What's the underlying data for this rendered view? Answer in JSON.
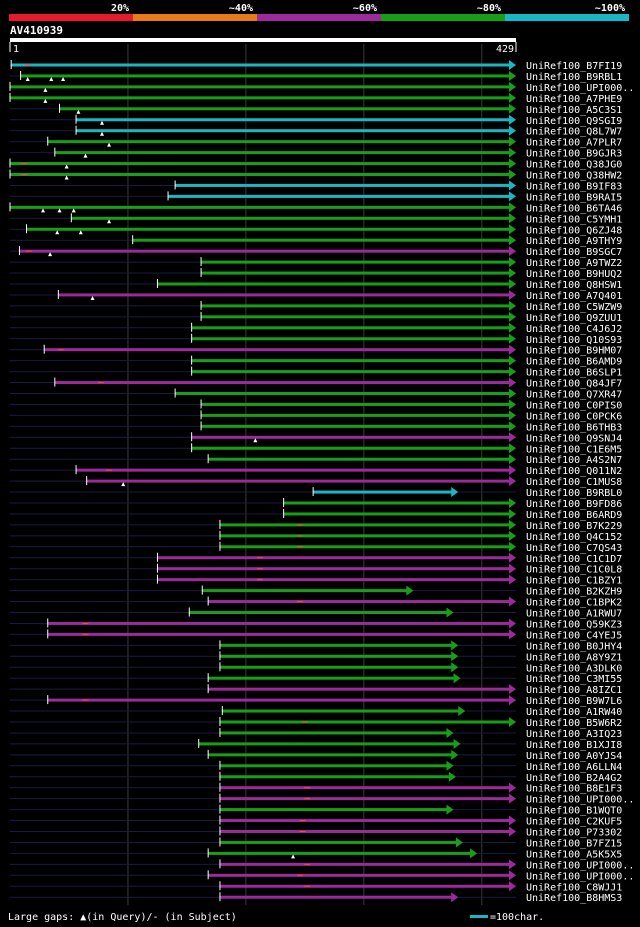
{
  "query": {
    "id": "AV410939",
    "start": "1",
    "end": "429",
    "length": 429
  },
  "identity_scale": [
    {
      "label": "20%",
      "color": "#e8192c"
    },
    {
      "label": "~40%",
      "color": "#e87b17"
    },
    {
      "label": "~60%",
      "color": "#9c2a9c"
    },
    {
      "label": "~80%",
      "color": "#17a017"
    },
    {
      "label": "~100%",
      "color": "#17b8c4"
    }
  ],
  "footer": {
    "gaps_text": "Large gaps: ▲(in Query)/- (in Subject)",
    "scale_text": "=100char."
  },
  "hits": [
    {
      "name": "UniRef100_B7FI19",
      "start": 1,
      "end": 429,
      "color": "#17b8c4",
      "qgaps": [],
      "sgaps": [
        15
      ]
    },
    {
      "name": "UniRef100_B9RBL1",
      "start": 9,
      "end": 429,
      "color": "#17a017",
      "qgaps": [
        15,
        35,
        45
      ],
      "sgaps": []
    },
    {
      "name": "UniRef100_UPI000..",
      "start": 0,
      "end": 429,
      "color": "#17a017",
      "qgaps": [
        30
      ],
      "sgaps": []
    },
    {
      "name": "UniRef100_A7PHE9",
      "start": 0,
      "end": 429,
      "color": "#17a017",
      "qgaps": [
        30
      ],
      "sgaps": []
    },
    {
      "name": "UniRef100_A5C3S1",
      "start": 42,
      "end": 429,
      "color": "#17a017",
      "qgaps": [
        58
      ],
      "sgaps": []
    },
    {
      "name": "UniRef100_Q9SGI9",
      "start": 56,
      "end": 429,
      "color": "#17b8c4",
      "qgaps": [
        78
      ],
      "sgaps": []
    },
    {
      "name": "UniRef100_Q8L7W7",
      "start": 56,
      "end": 429,
      "color": "#17b8c4",
      "qgaps": [
        78
      ],
      "sgaps": []
    },
    {
      "name": "UniRef100_A7PLR7",
      "start": 32,
      "end": 429,
      "color": "#17a017",
      "qgaps": [
        84
      ],
      "sgaps": []
    },
    {
      "name": "UniRef100_B9GJR3",
      "start": 38,
      "end": 429,
      "color": "#17a017",
      "qgaps": [
        64
      ],
      "sgaps": []
    },
    {
      "name": "UniRef100_Q38JG0",
      "start": 0,
      "end": 429,
      "color": "#17a017",
      "qgaps": [
        48
      ],
      "sgaps": [
        12
      ]
    },
    {
      "name": "UniRef100_Q38HW2",
      "start": 0,
      "end": 429,
      "color": "#17a017",
      "qgaps": [
        48
      ],
      "sgaps": [
        12
      ]
    },
    {
      "name": "UniRef100_B9IF83",
      "start": 140,
      "end": 429,
      "color": "#17b8c4",
      "qgaps": [],
      "sgaps": []
    },
    {
      "name": "UniRef100_B9RAI5",
      "start": 134,
      "end": 429,
      "color": "#17b8c4",
      "qgaps": [],
      "sgaps": []
    },
    {
      "name": "UniRef100_B6TA46",
      "start": 0,
      "end": 429,
      "color": "#17a017",
      "qgaps": [
        28,
        42,
        54
      ],
      "sgaps": []
    },
    {
      "name": "UniRef100_C5YMH1",
      "start": 52,
      "end": 429,
      "color": "#17a017",
      "qgaps": [
        84
      ],
      "sgaps": []
    },
    {
      "name": "UniRef100_Q6ZJ48",
      "start": 14,
      "end": 429,
      "color": "#17a017",
      "qgaps": [
        40,
        60
      ],
      "sgaps": []
    },
    {
      "name": "UniRef100_A9THY9",
      "start": 104,
      "end": 429,
      "color": "#17a017",
      "qgaps": [],
      "sgaps": []
    },
    {
      "name": "UniRef100_B9SGC7",
      "start": 8,
      "end": 429,
      "color": "#9c2a9c",
      "qgaps": [
        34
      ],
      "sgaps": [
        16
      ]
    },
    {
      "name": "UniRef100_A9TWZ2",
      "start": 162,
      "end": 429,
      "color": "#17a017",
      "qgaps": [],
      "sgaps": []
    },
    {
      "name": "UniRef100_B9HUQ2",
      "start": 162,
      "end": 429,
      "color": "#17a017",
      "qgaps": [],
      "sgaps": []
    },
    {
      "name": "UniRef100_Q8HSW1",
      "start": 125,
      "end": 429,
      "color": "#17a017",
      "qgaps": [],
      "sgaps": []
    },
    {
      "name": "UniRef100_A7Q401",
      "start": 41,
      "end": 429,
      "color": "#9c2a9c",
      "qgaps": [
        70
      ],
      "sgaps": []
    },
    {
      "name": "UniRef100_C5WZW9",
      "start": 162,
      "end": 429,
      "color": "#17a017",
      "qgaps": [],
      "sgaps": []
    },
    {
      "name": "UniRef100_Q9ZUU1",
      "start": 162,
      "end": 429,
      "color": "#17a017",
      "qgaps": [],
      "sgaps": []
    },
    {
      "name": "UniRef100_C4J6J2",
      "start": 154,
      "end": 429,
      "color": "#17a017",
      "qgaps": [],
      "sgaps": []
    },
    {
      "name": "UniRef100_Q10S93",
      "start": 154,
      "end": 429,
      "color": "#17a017",
      "qgaps": [],
      "sgaps": []
    },
    {
      "name": "UniRef100_B9HM07",
      "start": 29,
      "end": 429,
      "color": "#9c2a9c",
      "qgaps": [],
      "sgaps": [
        43
      ]
    },
    {
      "name": "UniRef100_B6AMD9",
      "start": 154,
      "end": 429,
      "color": "#17a017",
      "qgaps": [],
      "sgaps": []
    },
    {
      "name": "UniRef100_B6SLP1",
      "start": 154,
      "end": 429,
      "color": "#17a017",
      "qgaps": [],
      "sgaps": []
    },
    {
      "name": "UniRef100_Q84JF7",
      "start": 38,
      "end": 429,
      "color": "#9c2a9c",
      "qgaps": [],
      "sgaps": [
        77
      ]
    },
    {
      "name": "UniRef100_Q7XR47",
      "start": 140,
      "end": 429,
      "color": "#17a017",
      "qgaps": [],
      "sgaps": []
    },
    {
      "name": "UniRef100_C0PIS0",
      "start": 162,
      "end": 429,
      "color": "#17a017",
      "qgaps": [],
      "sgaps": []
    },
    {
      "name": "UniRef100_C0PCK6",
      "start": 162,
      "end": 429,
      "color": "#17a017",
      "qgaps": [],
      "sgaps": []
    },
    {
      "name": "UniRef100_B6THB3",
      "start": 162,
      "end": 429,
      "color": "#17a017",
      "qgaps": [],
      "sgaps": []
    },
    {
      "name": "UniRef100_Q9SNJ4",
      "start": 154,
      "end": 429,
      "color": "#9c2a9c",
      "qgaps": [
        208
      ],
      "sgaps": []
    },
    {
      "name": "UniRef100_C1E6M5",
      "start": 154,
      "end": 429,
      "color": "#17a017",
      "qgaps": [],
      "sgaps": []
    },
    {
      "name": "UniRef100_A4S2N7",
      "start": 168,
      "end": 429,
      "color": "#17a017",
      "qgaps": [],
      "sgaps": []
    },
    {
      "name": "UniRef100_Q011N2",
      "start": 56,
      "end": 429,
      "color": "#9c2a9c",
      "qgaps": [],
      "sgaps": [
        84
      ]
    },
    {
      "name": "UniRef100_C1MUS8",
      "start": 65,
      "end": 429,
      "color": "#9c2a9c",
      "qgaps": [
        96
      ],
      "sgaps": []
    },
    {
      "name": "UniRef100_B9RBL0",
      "start": 257,
      "end": 380,
      "color": "#17b8c4",
      "qgaps": [],
      "sgaps": []
    },
    {
      "name": "UniRef100_B9FD86",
      "start": 232,
      "end": 429,
      "color": "#17a017",
      "qgaps": [],
      "sgaps": []
    },
    {
      "name": "UniRef100_B6ARD9",
      "start": 232,
      "end": 429,
      "color": "#17a017",
      "qgaps": [],
      "sgaps": []
    },
    {
      "name": "UniRef100_B7K229",
      "start": 178,
      "end": 429,
      "color": "#17a017",
      "qgaps": [],
      "sgaps": [
        246
      ]
    },
    {
      "name": "UniRef100_Q4C152",
      "start": 178,
      "end": 429,
      "color": "#17a017",
      "qgaps": [],
      "sgaps": [
        246
      ]
    },
    {
      "name": "UniRef100_C7QS43",
      "start": 178,
      "end": 429,
      "color": "#17a017",
      "qgaps": [],
      "sgaps": [
        246
      ]
    },
    {
      "name": "UniRef100_C1C1D7",
      "start": 125,
      "end": 429,
      "color": "#9c2a9c",
      "qgaps": [],
      "sgaps": [
        212
      ]
    },
    {
      "name": "UniRef100_C1C0L8",
      "start": 125,
      "end": 429,
      "color": "#9c2a9c",
      "qgaps": [],
      "sgaps": [
        212
      ]
    },
    {
      "name": "UniRef100_C1BZY1",
      "start": 125,
      "end": 429,
      "color": "#9c2a9c",
      "qgaps": [],
      "sgaps": [
        212
      ]
    },
    {
      "name": "UniRef100_B2KZH9",
      "start": 163,
      "end": 342,
      "color": "#17a017",
      "qgaps": [],
      "sgaps": []
    },
    {
      "name": "UniRef100_C1BPK2",
      "start": 168,
      "end": 429,
      "color": "#9c2a9c",
      "qgaps": [],
      "sgaps": [
        246
      ]
    },
    {
      "name": "UniRef100_A1RWU7",
      "start": 152,
      "end": 376,
      "color": "#17a017",
      "qgaps": [],
      "sgaps": []
    },
    {
      "name": "UniRef100_Q59KZ3",
      "start": 32,
      "end": 429,
      "color": "#9c2a9c",
      "qgaps": [],
      "sgaps": [
        64
      ]
    },
    {
      "name": "UniRef100_C4YEJ5",
      "start": 32,
      "end": 429,
      "color": "#9c2a9c",
      "qgaps": [],
      "sgaps": [
        64
      ]
    },
    {
      "name": "UniRef100_B0JHY4",
      "start": 178,
      "end": 380,
      "color": "#17a017",
      "qgaps": [],
      "sgaps": []
    },
    {
      "name": "UniRef100_A8Y9Z1",
      "start": 178,
      "end": 380,
      "color": "#17a017",
      "qgaps": [],
      "sgaps": []
    },
    {
      "name": "UniRef100_A3DLK0",
      "start": 178,
      "end": 380,
      "color": "#17a017",
      "qgaps": [],
      "sgaps": []
    },
    {
      "name": "UniRef100_C3MI55",
      "start": 168,
      "end": 382,
      "color": "#17a017",
      "qgaps": [],
      "sgaps": []
    },
    {
      "name": "UniRef100_A8IZC1",
      "start": 168,
      "end": 429,
      "color": "#9c2a9c",
      "qgaps": [],
      "sgaps": []
    },
    {
      "name": "UniRef100_B9W7L6",
      "start": 32,
      "end": 429,
      "color": "#9c2a9c",
      "qgaps": [],
      "sgaps": [
        64
      ]
    },
    {
      "name": "UniRef100_A1RW40",
      "start": 180,
      "end": 386,
      "color": "#17a017",
      "qgaps": [],
      "sgaps": []
    },
    {
      "name": "UniRef100_B5W6R2",
      "start": 178,
      "end": 429,
      "color": "#17a017",
      "qgaps": [],
      "sgaps": [
        250
      ]
    },
    {
      "name": "UniRef100_A3IQ23",
      "start": 178,
      "end": 376,
      "color": "#17a017",
      "qgaps": [],
      "sgaps": []
    },
    {
      "name": "UniRef100_B1XJI8",
      "start": 160,
      "end": 382,
      "color": "#17a017",
      "qgaps": [],
      "sgaps": []
    },
    {
      "name": "UniRef100_A0YJS4",
      "start": 168,
      "end": 380,
      "color": "#17a017",
      "qgaps": [],
      "sgaps": []
    },
    {
      "name": "UniRef100_A6LLN4",
      "start": 178,
      "end": 376,
      "color": "#17a017",
      "qgaps": [],
      "sgaps": []
    },
    {
      "name": "UniRef100_B2A4G2",
      "start": 178,
      "end": 378,
      "color": "#17a017",
      "qgaps": [],
      "sgaps": []
    },
    {
      "name": "UniRef100_B8E1F3",
      "start": 178,
      "end": 429,
      "color": "#9c2a9c",
      "qgaps": [],
      "sgaps": [
        252
      ]
    },
    {
      "name": "UniRef100_UPI000..",
      "start": 178,
      "end": 429,
      "color": "#9c2a9c",
      "qgaps": [],
      "sgaps": [
        252
      ]
    },
    {
      "name": "UniRef100_B1WQT0",
      "start": 178,
      "end": 376,
      "color": "#17a017",
      "qgaps": [],
      "sgaps": []
    },
    {
      "name": "UniRef100_C2KUF5",
      "start": 178,
      "end": 429,
      "color": "#9c2a9c",
      "qgaps": [],
      "sgaps": [
        248
      ]
    },
    {
      "name": "UniRef100_P73302",
      "start": 178,
      "end": 429,
      "color": "#9c2a9c",
      "qgaps": [],
      "sgaps": [
        248
      ]
    },
    {
      "name": "UniRef100_B7FZ15",
      "start": 178,
      "end": 384,
      "color": "#17a017",
      "qgaps": [],
      "sgaps": []
    },
    {
      "name": "UniRef100_A5K5X5",
      "start": 168,
      "end": 396,
      "color": "#17a017",
      "qgaps": [
        240
      ],
      "sgaps": []
    },
    {
      "name": "UniRef100_UPI000..",
      "start": 178,
      "end": 429,
      "color": "#9c2a9c",
      "qgaps": [],
      "sgaps": [
        252
      ]
    },
    {
      "name": "UniRef100_UPI000..",
      "start": 168,
      "end": 429,
      "color": "#9c2a9c",
      "qgaps": [],
      "sgaps": [
        246
      ]
    },
    {
      "name": "UniRef100_C8WJJ1",
      "start": 178,
      "end": 429,
      "color": "#9c2a9c",
      "qgaps": [],
      "sgaps": [
        252
      ]
    },
    {
      "name": "UniRef100_B8HMS3",
      "start": 178,
      "end": 380,
      "color": "#9c2a9c",
      "qgaps": [],
      "sgaps": []
    }
  ]
}
